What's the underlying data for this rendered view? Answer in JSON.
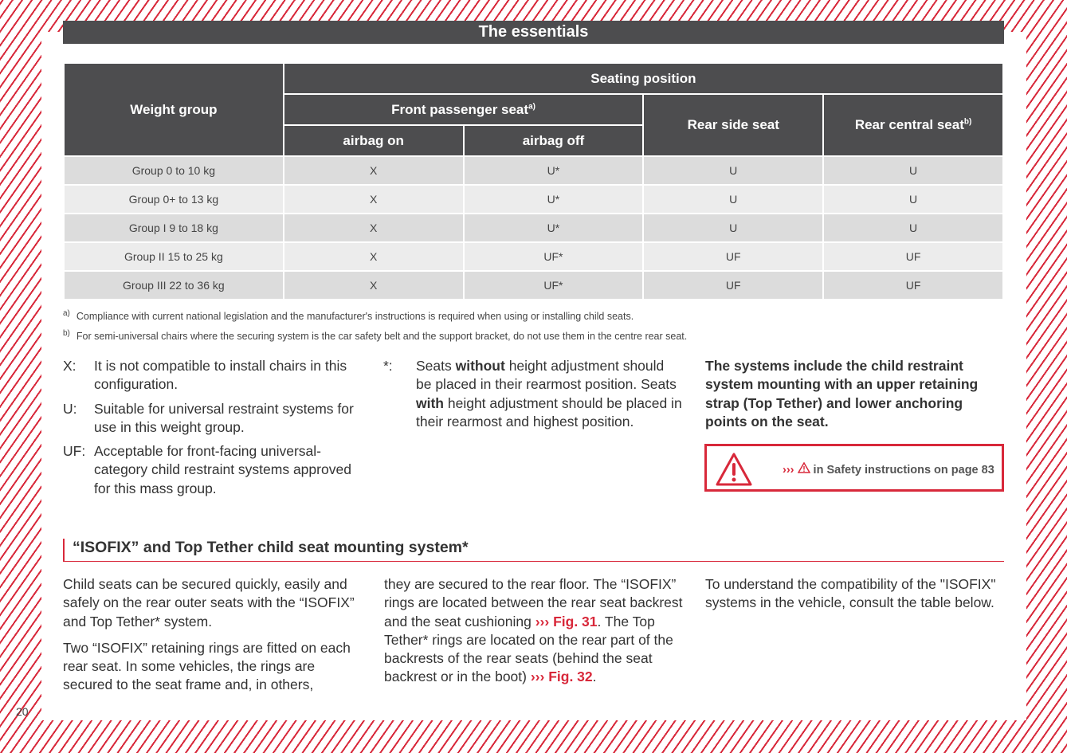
{
  "header": {
    "title": "The essentials"
  },
  "table": {
    "weight_group": "Weight group",
    "seating_position": "Seating position",
    "front": "Front passenger seat",
    "front_note": "a)",
    "rear_side": "Rear side seat",
    "rear_central": "Rear central seat",
    "rear_central_note": "b)",
    "airbag_on": "airbag on",
    "airbag_off": "airbag off",
    "rows": [
      [
        "Group 0 to 10 kg",
        "X",
        "U*",
        "U",
        "U"
      ],
      [
        "Group 0+ to 13 kg",
        "X",
        "U*",
        "U",
        "U"
      ],
      [
        "Group I 9 to 18 kg",
        "X",
        "U*",
        "U",
        "U"
      ],
      [
        "Group II 15 to 25 kg",
        "X",
        "UF*",
        "UF",
        "UF"
      ],
      [
        "Group III 22 to 36 kg",
        "X",
        "UF*",
        "UF",
        "UF"
      ]
    ]
  },
  "footnotes": [
    {
      "mark": "a)",
      "text": "Compliance with current national legislation and the manufacturer's instructions is required when using or installing child seats."
    },
    {
      "mark": "b)",
      "text": "For semi-universal chairs where the securing system is the car safety belt and the support bracket, do not use them in the centre rear seat."
    }
  ],
  "legend": [
    {
      "key": "X:",
      "text": "It is not compatible to install chairs in this configuration."
    },
    {
      "key": "U:",
      "text": "Suitable for universal restraint systems for use in this weight group."
    },
    {
      "key": "UF:",
      "text": "Acceptable for front-facing universal-category child restraint systems approved for this mass group."
    }
  ],
  "star": {
    "key": "*:",
    "t1": "Seats ",
    "b1": "without",
    "t2": " height adjustment should be placed in their rearmost position. Seats ",
    "b2": "with",
    "t3": " height adjustment should be placed in their rearmost and highest position."
  },
  "systems_text": "The systems include the child restraint system mounting with an upper retaining strap (Top Tether) and lower anchoring points on the seat.",
  "warning": {
    "arrows": "›››",
    "text": " in Safety instructions on page 83"
  },
  "section": {
    "title": "“ISOFIX” and Top Tether child seat mounting system*"
  },
  "body": {
    "p1": "Child seats can be secured quickly, easily and safely on the rear outer seats with the “ISOFIX” and Top Tether* system.",
    "p2": "Two “ISOFIX” retaining rings are fitted on each rear seat. In some vehicles, the rings are secured to the seat frame and, in others,",
    "p3a": "they are secured to the rear floor. The “ISOFIX” rings are located between the rear seat backrest and the seat cushioning ",
    "fig31": "››› Fig. 31",
    "p3b": ". The Top Tether* rings are located on the rear part of the backrests of the rear seats (behind the seat backrest or in the boot) ",
    "fig32": "››› Fig. 32",
    "p3c": ".",
    "p4": "To understand the compatibility of the \"ISOFIX\" systems in the vehicle, consult the table below."
  },
  "page_number": "20"
}
